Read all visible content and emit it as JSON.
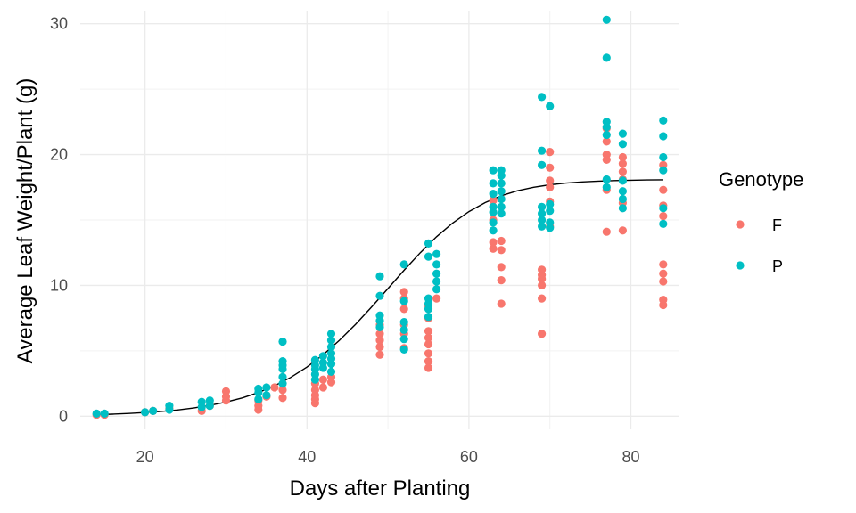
{
  "chart_data": {
    "type": "scatter",
    "xlabel": "Days after Planting",
    "ylabel": "Average Leaf Weight/Plant (g)",
    "xlim": [
      12,
      86
    ],
    "ylim": [
      -1,
      31
    ],
    "xticks": [
      20,
      40,
      60,
      80
    ],
    "yticks": [
      0,
      10,
      20,
      30
    ],
    "grid": true,
    "legend": {
      "title": "Genotype",
      "placement": "right"
    },
    "series": [
      {
        "name": "F",
        "color": "#F8766D",
        "points": [
          [
            14,
            0.1
          ],
          [
            15,
            0.1
          ],
          [
            20,
            0.3
          ],
          [
            21,
            0.4
          ],
          [
            23,
            0.6
          ],
          [
            27,
            0.4
          ],
          [
            28,
            0.8
          ],
          [
            30,
            1.2
          ],
          [
            30,
            1.5
          ],
          [
            30,
            1.9
          ],
          [
            34,
            0.5
          ],
          [
            34,
            0.8
          ],
          [
            34,
            1.2
          ],
          [
            35,
            1.5
          ],
          [
            36,
            2.2
          ],
          [
            37,
            1.4
          ],
          [
            37,
            2.0
          ],
          [
            41,
            1.0
          ],
          [
            41,
            1.3
          ],
          [
            41,
            1.6
          ],
          [
            41,
            2.0
          ],
          [
            41,
            2.5
          ],
          [
            42,
            2.2
          ],
          [
            42,
            2.8
          ],
          [
            43,
            2.6
          ],
          [
            43,
            3.0
          ],
          [
            49,
            4.7
          ],
          [
            49,
            5.3
          ],
          [
            49,
            5.8
          ],
          [
            49,
            6.3
          ],
          [
            49,
            7.0
          ],
          [
            52,
            5.2
          ],
          [
            52,
            6.3
          ],
          [
            52,
            7.0
          ],
          [
            52,
            8.2
          ],
          [
            52,
            9.0
          ],
          [
            52,
            9.5
          ],
          [
            55,
            3.7
          ],
          [
            55,
            4.2
          ],
          [
            55,
            4.8
          ],
          [
            55,
            5.5
          ],
          [
            55,
            6.0
          ],
          [
            55,
            6.5
          ],
          [
            55,
            7.5
          ],
          [
            55,
            8.4
          ],
          [
            56,
            9.0
          ],
          [
            63,
            12.8
          ],
          [
            63,
            13.3
          ],
          [
            63,
            15.0
          ],
          [
            63,
            16.5
          ],
          [
            64,
            8.6
          ],
          [
            64,
            10.4
          ],
          [
            64,
            11.4
          ],
          [
            64,
            12.7
          ],
          [
            64,
            13.4
          ],
          [
            69,
            6.3
          ],
          [
            69,
            9.0
          ],
          [
            69,
            10.0
          ],
          [
            69,
            10.5
          ],
          [
            69,
            10.8
          ],
          [
            69,
            11.2
          ],
          [
            70,
            14.5
          ],
          [
            70,
            16.4
          ],
          [
            70,
            17.5
          ],
          [
            70,
            18.0
          ],
          [
            70,
            19.0
          ],
          [
            70,
            20.2
          ],
          [
            77,
            14.1
          ],
          [
            77,
            17.3
          ],
          [
            77,
            19.6
          ],
          [
            77,
            20.0
          ],
          [
            77,
            21.0
          ],
          [
            77,
            22.0
          ],
          [
            79,
            14.2
          ],
          [
            79,
            16.3
          ],
          [
            79,
            18.1
          ],
          [
            79,
            18.7
          ],
          [
            79,
            19.3
          ],
          [
            79,
            19.8
          ],
          [
            84,
            8.5
          ],
          [
            84,
            8.9
          ],
          [
            84,
            10.3
          ],
          [
            84,
            10.9
          ],
          [
            84,
            11.6
          ],
          [
            84,
            15.3
          ],
          [
            84,
            16.1
          ],
          [
            84,
            17.3
          ],
          [
            84,
            19.2
          ]
        ]
      },
      {
        "name": "P",
        "color": "#00BFC4",
        "points": [
          [
            14,
            0.2
          ],
          [
            15,
            0.2
          ],
          [
            20,
            0.3
          ],
          [
            21,
            0.4
          ],
          [
            23,
            0.5
          ],
          [
            23,
            0.8
          ],
          [
            27,
            0.7
          ],
          [
            27,
            1.1
          ],
          [
            28,
            0.8
          ],
          [
            28,
            1.2
          ],
          [
            34,
            1.3
          ],
          [
            34,
            1.8
          ],
          [
            34,
            2.1
          ],
          [
            35,
            2.2
          ],
          [
            35,
            1.6
          ],
          [
            37,
            2.5
          ],
          [
            37,
            3.0
          ],
          [
            37,
            3.6
          ],
          [
            37,
            3.9
          ],
          [
            37,
            4.2
          ],
          [
            37,
            5.7
          ],
          [
            41,
            2.8
          ],
          [
            41,
            3.2
          ],
          [
            41,
            3.6
          ],
          [
            41,
            3.9
          ],
          [
            41,
            4.3
          ],
          [
            42,
            4.6
          ],
          [
            42,
            4.1
          ],
          [
            42,
            3.7
          ],
          [
            43,
            3.4
          ],
          [
            43,
            4.0
          ],
          [
            43,
            4.4
          ],
          [
            43,
            4.8
          ],
          [
            43,
            5.3
          ],
          [
            43,
            5.8
          ],
          [
            43,
            6.3
          ],
          [
            49,
            6.8
          ],
          [
            49,
            7.3
          ],
          [
            49,
            7.7
          ],
          [
            49,
            9.2
          ],
          [
            49,
            10.7
          ],
          [
            52,
            5.1
          ],
          [
            52,
            5.9
          ],
          [
            52,
            6.6
          ],
          [
            52,
            7.2
          ],
          [
            52,
            8.8
          ],
          [
            52,
            11.6
          ],
          [
            55,
            7.6
          ],
          [
            55,
            8.2
          ],
          [
            55,
            8.6
          ],
          [
            55,
            9.0
          ],
          [
            55,
            12.2
          ],
          [
            55,
            13.2
          ],
          [
            56,
            9.7
          ],
          [
            56,
            10.3
          ],
          [
            56,
            10.9
          ],
          [
            56,
            11.6
          ],
          [
            56,
            12.4
          ],
          [
            63,
            14.2
          ],
          [
            63,
            14.8
          ],
          [
            63,
            15.6
          ],
          [
            63,
            16.0
          ],
          [
            63,
            17.0
          ],
          [
            63,
            17.8
          ],
          [
            63,
            18.8
          ],
          [
            64,
            15.5
          ],
          [
            64,
            16.0
          ],
          [
            64,
            16.6
          ],
          [
            64,
            17.2
          ],
          [
            64,
            17.8
          ],
          [
            64,
            18.4
          ],
          [
            64,
            18.8
          ],
          [
            69,
            14.5
          ],
          [
            69,
            15.0
          ],
          [
            69,
            15.5
          ],
          [
            69,
            16.0
          ],
          [
            69,
            19.2
          ],
          [
            69,
            20.3
          ],
          [
            69,
            24.4
          ],
          [
            70,
            14.4
          ],
          [
            70,
            14.8
          ],
          [
            70,
            15.7
          ],
          [
            70,
            16.2
          ],
          [
            70,
            23.7
          ],
          [
            77,
            17.5
          ],
          [
            77,
            18.1
          ],
          [
            77,
            21.5
          ],
          [
            77,
            22.1
          ],
          [
            77,
            22.5
          ],
          [
            77,
            27.4
          ],
          [
            77,
            30.3
          ],
          [
            79,
            15.9
          ],
          [
            79,
            16.6
          ],
          [
            79,
            17.2
          ],
          [
            79,
            18.0
          ],
          [
            79,
            20.8
          ],
          [
            79,
            21.6
          ],
          [
            84,
            14.7
          ],
          [
            84,
            15.9
          ],
          [
            84,
            18.8
          ],
          [
            84,
            19.8
          ],
          [
            84,
            21.4
          ],
          [
            84,
            22.6
          ]
        ]
      },
      {
        "name": "",
        "kind": "fit-line",
        "color": "#000000",
        "x": [
          14,
          16,
          18,
          20,
          22,
          24,
          26,
          28,
          30,
          32,
          34,
          36,
          38,
          40,
          42,
          44,
          46,
          48,
          50,
          52,
          54,
          56,
          58,
          60,
          62,
          64,
          66,
          68,
          70,
          72,
          74,
          76,
          78,
          80,
          82,
          84
        ],
        "y": [
          0.12,
          0.16,
          0.21,
          0.28,
          0.37,
          0.48,
          0.63,
          0.83,
          1.08,
          1.4,
          1.81,
          2.33,
          2.97,
          3.76,
          4.7,
          5.8,
          7.03,
          8.36,
          9.76,
          11.16,
          12.5,
          13.72,
          14.77,
          15.64,
          16.33,
          16.85,
          17.23,
          17.5,
          17.69,
          17.82,
          17.91,
          17.97,
          18.01,
          18.04,
          18.06,
          18.07
        ]
      }
    ]
  }
}
